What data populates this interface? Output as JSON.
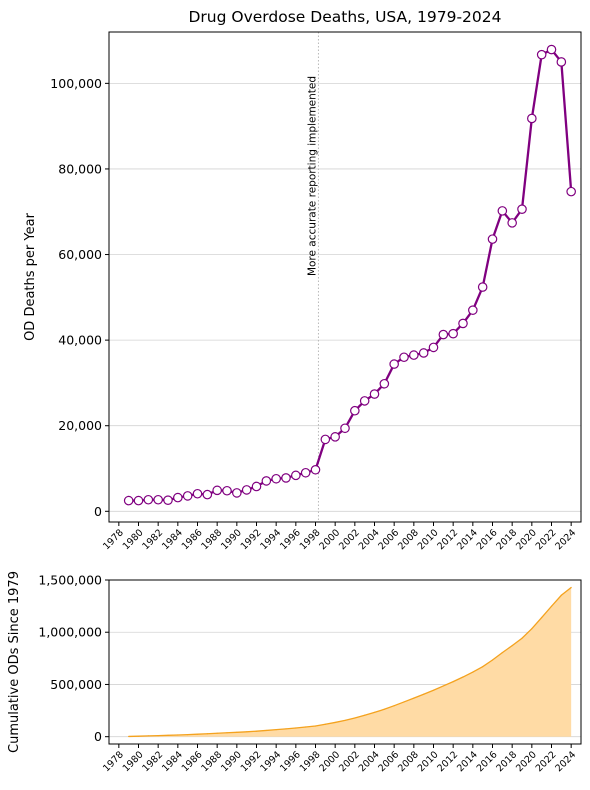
{
  "colors": {
    "line": "#800080",
    "marker_face": "#ffffff",
    "area_fill": "#FFDBA5",
    "area_edge": "#F4A21E",
    "grid": "#d3d3d3",
    "vline": "#b8b8b8",
    "annotation": "#b0b0b0"
  },
  "chart_data": [
    {
      "type": "line",
      "title": "Drug Overdose Deaths, USA, 1979-2024",
      "xlabel": "",
      "ylabel": "OD Deaths per Year",
      "xlim": [
        1977,
        2025
      ],
      "ylim": [
        -2500,
        112000
      ],
      "yticks": [
        0,
        20000,
        40000,
        60000,
        80000,
        100000
      ],
      "ytick_labels": [
        "0",
        "20,000",
        "40,000",
        "60,000",
        "80,000",
        "100,000"
      ],
      "xticks": [
        1978,
        1980,
        1982,
        1984,
        1986,
        1988,
        1990,
        1992,
        1994,
        1996,
        1998,
        2000,
        2002,
        2004,
        2006,
        2008,
        2010,
        2012,
        2014,
        2016,
        2018,
        2020,
        2022,
        2024
      ],
      "grid": "horizontal",
      "legend": "none",
      "x": [
        1979,
        1980,
        1981,
        1982,
        1983,
        1984,
        1985,
        1986,
        1987,
        1988,
        1989,
        1990,
        1991,
        1992,
        1993,
        1994,
        1995,
        1996,
        1997,
        1998,
        1999,
        2000,
        2001,
        2002,
        2003,
        2004,
        2005,
        2006,
        2007,
        2008,
        2009,
        2010,
        2011,
        2012,
        2013,
        2014,
        2015,
        2016,
        2017,
        2018,
        2019,
        2020,
        2021,
        2022,
        2023,
        2024
      ],
      "y": [
        2500,
        2500,
        2700,
        2700,
        2600,
        3200,
        3600,
        4100,
        3900,
        4900,
        4800,
        4300,
        5000,
        5800,
        7100,
        7600,
        7800,
        8400,
        9000,
        9700,
        16800,
        17400,
        19400,
        23500,
        25800,
        27400,
        29800,
        34400,
        36000,
        36500,
        37000,
        38300,
        41300,
        41500,
        43900,
        47000,
        52400,
        63600,
        70200,
        67400,
        70600,
        91800,
        106700,
        107900,
        105000,
        74700
      ],
      "annotation": {
        "x": 1998.3,
        "text": "More accurate reporting implemented"
      }
    },
    {
      "type": "area",
      "title": "",
      "xlabel": "",
      "ylabel": "Cumulative ODs Since 1979",
      "xlim": [
        1977,
        2025
      ],
      "ylim": [
        -70000,
        1500000
      ],
      "yticks": [
        0,
        500000,
        1000000,
        1500000
      ],
      "ytick_labels": [
        "0",
        "500,000",
        "1,000,000",
        "1,500,000"
      ],
      "xticks": [
        1978,
        1980,
        1982,
        1984,
        1986,
        1988,
        1990,
        1992,
        1994,
        1996,
        1998,
        2000,
        2002,
        2004,
        2006,
        2008,
        2010,
        2012,
        2014,
        2016,
        2018,
        2020,
        2022,
        2024
      ],
      "grid": "horizontal",
      "legend": "none",
      "x": [
        1979,
        1980,
        1981,
        1982,
        1983,
        1984,
        1985,
        1986,
        1987,
        1988,
        1989,
        1990,
        1991,
        1992,
        1993,
        1994,
        1995,
        1996,
        1997,
        1998,
        1999,
        2000,
        2001,
        2002,
        2003,
        2004,
        2005,
        2006,
        2007,
        2008,
        2009,
        2010,
        2011,
        2012,
        2013,
        2014,
        2015,
        2016,
        2017,
        2018,
        2019,
        2020,
        2021,
        2022,
        2023,
        2024
      ],
      "y": [
        2500,
        5000,
        7700,
        10400,
        13000,
        16200,
        19800,
        23900,
        27800,
        32700,
        37500,
        41800,
        46800,
        52600,
        59700,
        67300,
        75100,
        83500,
        92500,
        102200,
        119000,
        136400,
        155800,
        179300,
        205100,
        232500,
        262300,
        296700,
        332700,
        369200,
        406200,
        444500,
        485800,
        527300,
        571200,
        618200,
        670600,
        734200,
        804400,
        871800,
        942400,
        1034200,
        1140900,
        1248800,
        1353800,
        1428500
      ]
    }
  ]
}
